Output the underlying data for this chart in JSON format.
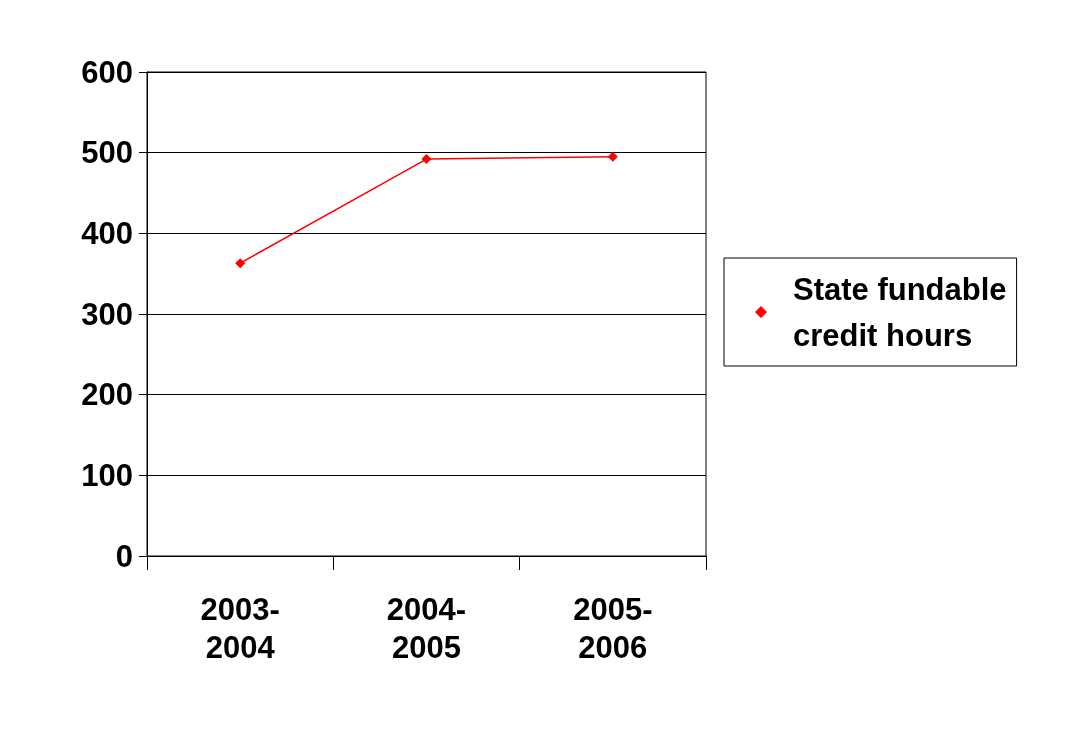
{
  "chart_data": {
    "type": "line",
    "categories": [
      "2003-2004",
      "2004-2005",
      "2005-2006"
    ],
    "series": [
      {
        "name": "State fundable credit hours",
        "color": "#ff0000",
        "values": [
          363,
          492,
          495
        ]
      }
    ],
    "ylim": [
      0,
      600
    ],
    "yticks": [
      0,
      100,
      200,
      300,
      400,
      500,
      600
    ],
    "grid": "y",
    "legend": "right",
    "marker": "diamond",
    "line_style": "solid"
  }
}
